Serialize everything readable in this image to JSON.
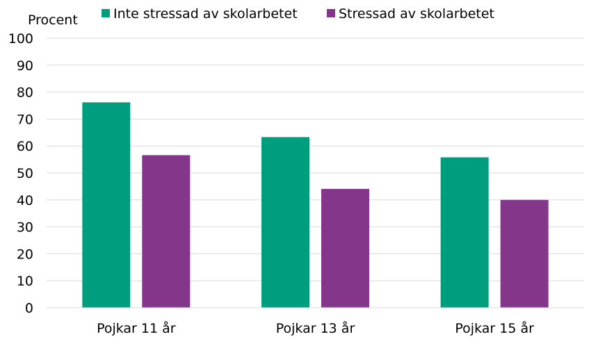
{
  "chart_data": {
    "type": "bar",
    "ylabel": "Procent",
    "ylim": [
      0,
      100
    ],
    "yticks": [
      0,
      10,
      20,
      30,
      40,
      50,
      60,
      70,
      80,
      90,
      100
    ],
    "grid": true,
    "legend_placement": "top",
    "categories": [
      "Pojkar 11 år",
      "Pojkar 13 år",
      "Pojkar 15 år"
    ],
    "series": [
      {
        "name": "Inte stressad av skolarbetet",
        "color": "#009e7e",
        "values": [
          76.2,
          63.3,
          55.8
        ]
      },
      {
        "name": "Stressad av skolarbetet",
        "color": "#84368a",
        "values": [
          56.6,
          44.1,
          40.0
        ]
      }
    ]
  }
}
